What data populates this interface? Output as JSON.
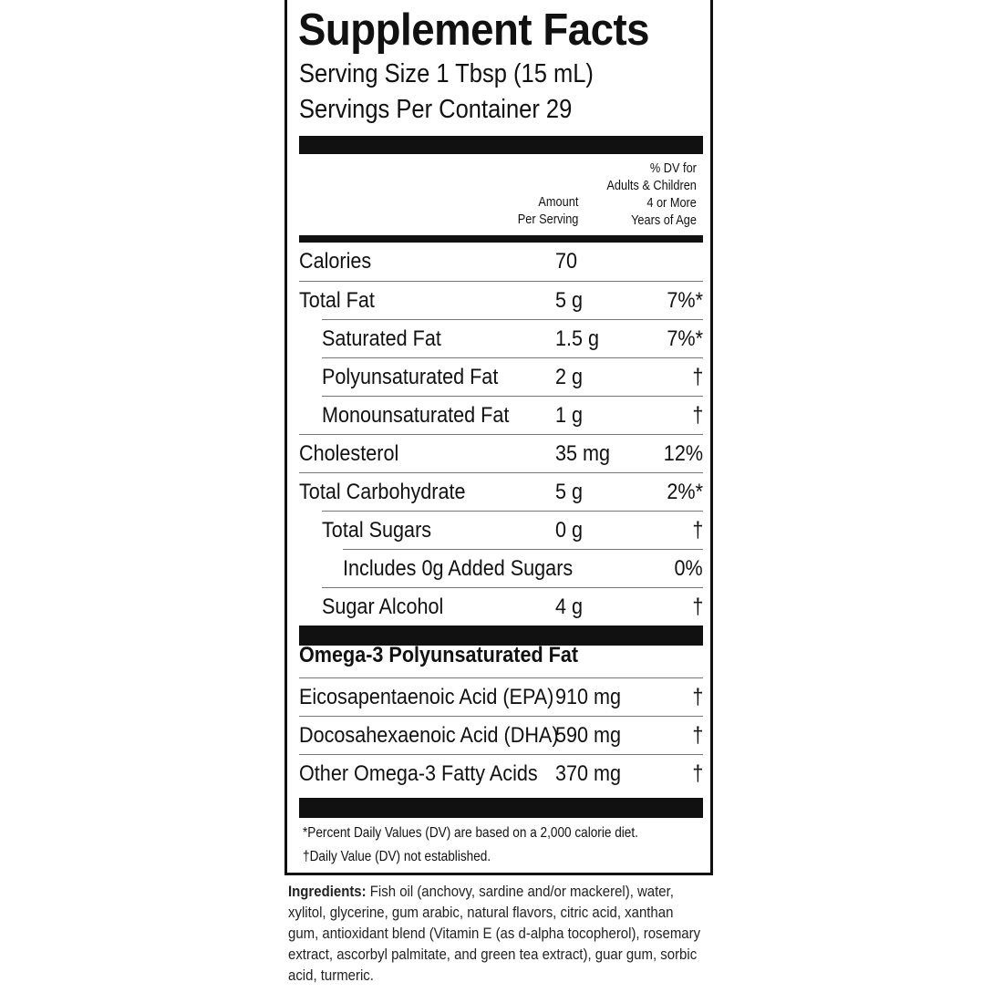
{
  "title": "Supplement Facts",
  "serving_size": "Serving Size 1 Tbsp (15 mL)",
  "servings_per_container": "Servings Per Container 29",
  "header": {
    "amount": [
      "Amount",
      "Per Serving"
    ],
    "dv": [
      "% DV for",
      "Adults & Children",
      "4 or More",
      "Years of Age"
    ]
  },
  "rows": [
    {
      "name": "Calories",
      "amount": "70",
      "dv": "",
      "indent": 0
    },
    {
      "name": "Total Fat",
      "amount": "5 g",
      "dv": "7%*",
      "indent": 0
    },
    {
      "name": "Saturated Fat",
      "amount": "1.5 g",
      "dv": "7%*",
      "indent": 1
    },
    {
      "name": "Polyunsaturated Fat",
      "amount": "2 g",
      "dv": "†",
      "indent": 1
    },
    {
      "name": "Monounsaturated Fat",
      "amount": "1 g",
      "dv": "†",
      "indent": 1
    },
    {
      "name": "Cholesterol",
      "amount": "35 mg",
      "dv": "12%",
      "indent": 0
    },
    {
      "name": "Total Carbohydrate",
      "amount": "5 g",
      "dv": "2%*",
      "indent": 0
    },
    {
      "name": "Total Sugars",
      "amount": "0 g",
      "dv": "†",
      "indent": 1
    },
    {
      "name": "Includes 0g Added Sugars",
      "amount": "",
      "dv": "0%",
      "indent": 2
    },
    {
      "name": "Sugar Alcohol",
      "amount": "4 g",
      "dv": "†",
      "indent": 1
    }
  ],
  "omega_heading": "Omega-3 Polyunsaturated Fat",
  "omega_rows": [
    {
      "name": "Eicosapentaenoic Acid (EPA)",
      "amount": "910 mg",
      "dv": "†"
    },
    {
      "name": "Docosahexaenoic Acid (DHA)",
      "amount": "590 mg",
      "dv": "†"
    },
    {
      "name": "Other Omega-3 Fatty Acids",
      "amount": "370 mg",
      "dv": "†"
    }
  ],
  "footnotes": [
    "*Percent Daily Values (DV) are based on a 2,000 calorie diet.",
    "†Daily Value (DV) not established."
  ],
  "ingredients": {
    "label": "Ingredients:",
    "text": " Fish oil (anchovy, sardine and/or mackerel), water, xylitol, glycerine, gum arabic, natural flavors, citric acid, xanthan gum, antioxidant blend (Vitamin E (as d-alpha tocopherol), rosemary extract, ascorbyl palmitate, and green tea extract), guar gum, sorbic acid, turmeric."
  }
}
